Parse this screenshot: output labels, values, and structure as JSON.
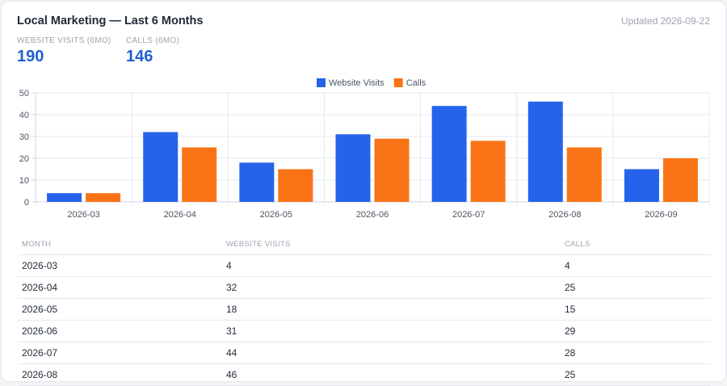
{
  "header": {
    "title": "Local Marketing — Last 6 Months",
    "updated": "Updated 2026-09-22"
  },
  "stats": [
    {
      "label": "WEBSITE VISITS (6MO)",
      "value": "190"
    },
    {
      "label": "CALLS (6MO)",
      "value": "146"
    }
  ],
  "colors": {
    "visits": "#2563eb",
    "calls": "#f97316"
  },
  "chart_data": {
    "type": "bar",
    "categories": [
      "2026-03",
      "2026-04",
      "2026-05",
      "2026-06",
      "2026-07",
      "2026-08",
      "2026-09"
    ],
    "series": [
      {
        "name": "Website Visits",
        "values": [
          4,
          32,
          18,
          31,
          44,
          46,
          15
        ]
      },
      {
        "name": "Calls",
        "values": [
          4,
          25,
          15,
          29,
          28,
          25,
          20
        ]
      }
    ],
    "ylim": [
      0,
      50
    ],
    "yticks": [
      0,
      10,
      20,
      30,
      40,
      50
    ],
    "legend": "top-center",
    "grid": true
  },
  "table": {
    "headers": [
      "MONTH",
      "WEBSITE VISITS",
      "CALLS"
    ],
    "rows": [
      [
        "2026-03",
        "4",
        "4"
      ],
      [
        "2026-04",
        "32",
        "25"
      ],
      [
        "2026-05",
        "18",
        "15"
      ],
      [
        "2026-06",
        "31",
        "29"
      ],
      [
        "2026-07",
        "44",
        "28"
      ],
      [
        "2026-08",
        "46",
        "25"
      ]
    ]
  }
}
